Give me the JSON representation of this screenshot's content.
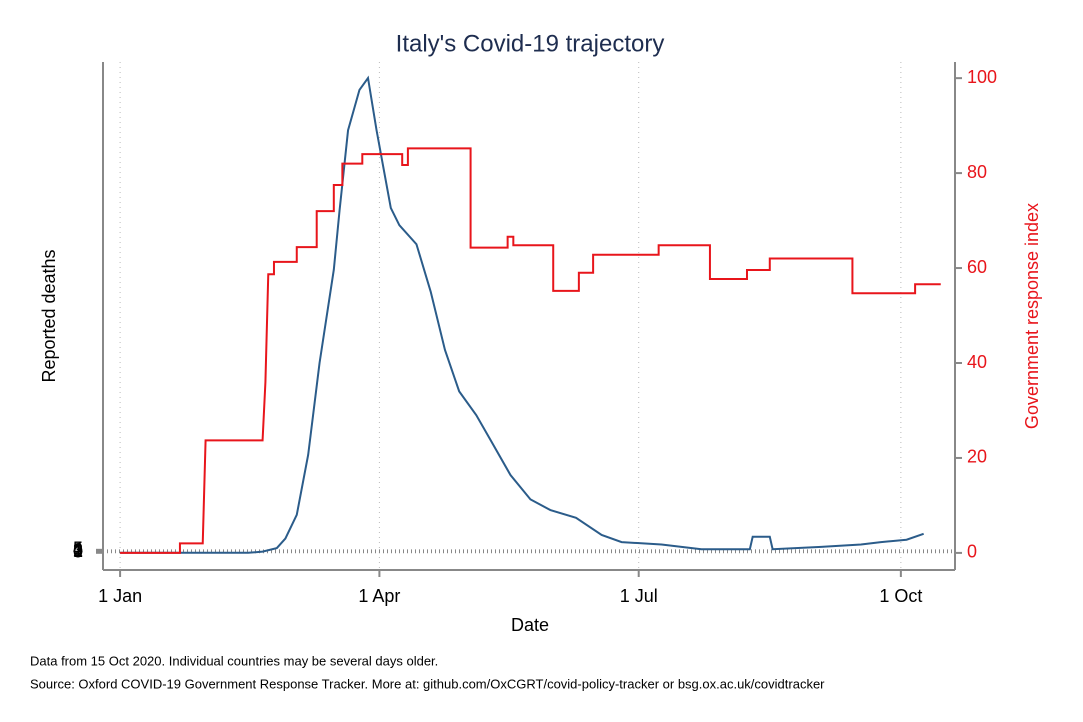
{
  "chart_data": {
    "type": "line",
    "title": "Italy's Covid-19 trajectory",
    "x_label": "Date",
    "y_label": "Reported deaths",
    "y2_label": "Government response index",
    "notes": [
      "Data from 15 Oct 2020. Individual countries may be several days older.",
      "Source: Oxford COVID-19 Government Response Tracker. More at: github.com/OxCGRT/covid-policy-tracker or bsg.ox.ac.uk/covidtracker"
    ],
    "xlim": [
      -6,
      293
    ],
    "xticks": [
      {
        "value": 0,
        "label": "1 Jan"
      },
      {
        "value": 91,
        "label": "1 Apr"
      },
      {
        "value": 182,
        "label": "1 Jul"
      },
      {
        "value": 274,
        "label": "1 Oct"
      }
    ],
    "ylim": [
      -29,
      827
    ],
    "yticks": [
      0,
      1,
      2,
      3,
      4,
      5
    ],
    "y2lim": [
      -3.6,
      103.4
    ],
    "y2ticks": [
      0,
      20,
      40,
      60,
      80,
      100
    ],
    "grid": true,
    "series": [
      {
        "name": "Reported deaths",
        "color": "#2b5c8a",
        "axis": "y",
        "x": [
          0,
          45,
          50,
          55,
          58,
          62,
          66,
          70,
          75,
          77,
          80,
          84,
          87,
          90,
          95,
          98,
          104,
          109,
          114,
          119,
          125,
          130,
          137,
          144,
          151,
          160,
          169,
          176,
          190,
          204,
          221,
          222,
          228,
          229,
          246,
          260,
          267,
          276,
          282
        ],
        "values": [
          0,
          0,
          2,
          8,
          24,
          64,
          165,
          320,
          477,
          576,
          712,
          780,
          800,
          712,
          581,
          552,
          520,
          440,
          342,
          272,
          232,
          190,
          131,
          90,
          72,
          59,
          30,
          18,
          14,
          6,
          6,
          27,
          27,
          6,
          10,
          14,
          18,
          22,
          32
        ]
      },
      {
        "name": "Government response index",
        "color": "#e8151b",
        "axis": "y2",
        "x": [
          0,
          21,
          21,
          29,
          30,
          50,
          51,
          52,
          54,
          54,
          62,
          62,
          69,
          69,
          75,
          75,
          78,
          78,
          85,
          85,
          99,
          99,
          101,
          101,
          123,
          123,
          136,
          136,
          138,
          138,
          152,
          152,
          161,
          161,
          166,
          166,
          189,
          189,
          207,
          207,
          220,
          220,
          228,
          228,
          257,
          257,
          279,
          279,
          288
        ],
        "values": [
          0,
          0,
          2,
          2,
          23.7,
          23.7,
          36,
          58.7,
          58.7,
          61.3,
          61.3,
          64.4,
          64.4,
          72,
          72,
          77.5,
          77.5,
          82,
          82,
          84,
          84,
          81.7,
          81.7,
          85.2,
          85.2,
          64.3,
          64.3,
          66.6,
          66.6,
          64.8,
          64.8,
          55.2,
          55.2,
          59,
          59,
          62.8,
          62.8,
          64.8,
          64.8,
          57.7,
          57.7,
          59.6,
          59.6,
          62,
          62,
          54.7,
          54.7,
          56.6,
          56.6
        ]
      }
    ]
  }
}
